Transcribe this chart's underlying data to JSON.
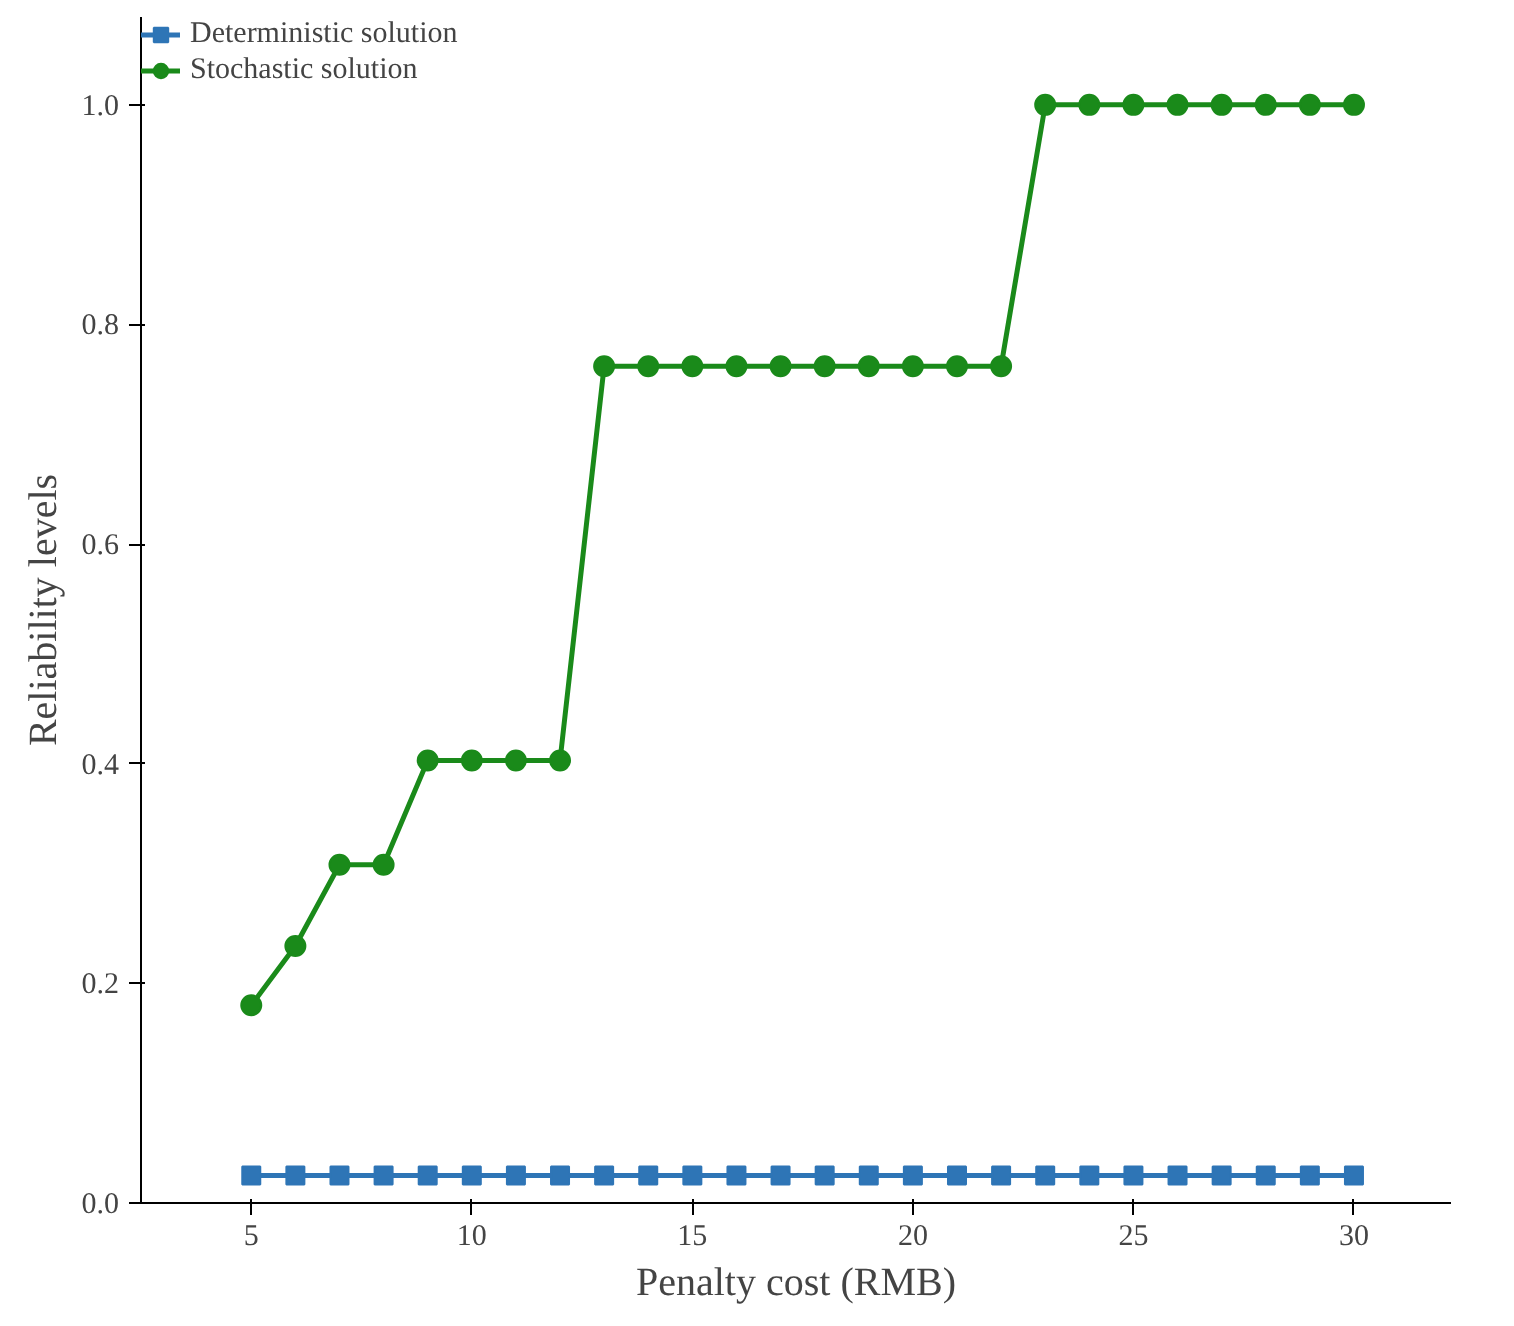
{
  "chart_data": {
    "type": "line",
    "xlabel": "Penalty cost (RMB)",
    "ylabel": "Reliability levels",
    "x": [
      5,
      6,
      7,
      8,
      9,
      10,
      11,
      12,
      13,
      14,
      15,
      16,
      17,
      18,
      19,
      20,
      21,
      22,
      23,
      24,
      25,
      26,
      27,
      28,
      29,
      30
    ],
    "series": [
      {
        "name": "Deterministic solution",
        "color": "#2e75b6",
        "marker": "square",
        "values": [
          0.025,
          0.025,
          0.025,
          0.025,
          0.025,
          0.025,
          0.025,
          0.025,
          0.025,
          0.025,
          0.025,
          0.025,
          0.025,
          0.025,
          0.025,
          0.025,
          0.025,
          0.025,
          0.025,
          0.025,
          0.025,
          0.025,
          0.025,
          0.025,
          0.025,
          0.025
        ]
      },
      {
        "name": "Stochastic solution",
        "color": "#1a8a1a",
        "marker": "circle",
        "values": [
          0.18,
          0.234,
          0.308,
          0.308,
          0.403,
          0.403,
          0.403,
          0.403,
          0.762,
          0.762,
          0.762,
          0.762,
          0.762,
          0.762,
          0.762,
          0.762,
          0.762,
          0.762,
          1.0,
          1.0,
          1.0,
          1.0,
          1.0,
          1.0,
          1.0,
          1.0
        ]
      }
    ],
    "xlim": [
      2.5,
      32.2
    ],
    "ylim": [
      0,
      1.08
    ],
    "xticks": [
      5,
      10,
      15,
      20,
      25,
      30
    ],
    "yticks": [
      {
        "value": 0,
        "label": "0.0"
      },
      {
        "value": 0.2,
        "label": "0.2"
      },
      {
        "value": 0.4,
        "label": "0.4"
      },
      {
        "value": 0.6,
        "label": "0.6"
      },
      {
        "value": 0.8,
        "label": "0.8"
      },
      {
        "value": 1.0,
        "label": "1.0"
      }
    ],
    "grid": false,
    "legend": "top left",
    "line_style": "solid"
  }
}
